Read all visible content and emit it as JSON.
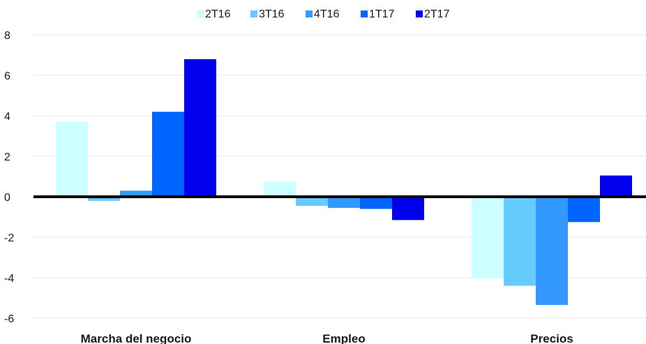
{
  "chart_data": {
    "type": "bar",
    "categories": [
      "Marcha del negocio",
      "Empleo",
      "Precios"
    ],
    "series": [
      {
        "name": "2T16",
        "color": "#ccffff",
        "values": [
          3.7,
          0.75,
          -4.05
        ]
      },
      {
        "name": "3T16",
        "color": "#66ccff",
        "values": [
          -0.2,
          -0.45,
          -4.4
        ]
      },
      {
        "name": "4T16",
        "color": "#3399ff",
        "values": [
          0.3,
          -0.55,
          -5.35
        ]
      },
      {
        "name": "1T17",
        "color": "#0066ff",
        "values": [
          4.2,
          -0.6,
          -1.25
        ]
      },
      {
        "name": "2T17",
        "color": "#0000ee",
        "values": [
          6.8,
          -1.15,
          1.05
        ]
      }
    ],
    "ylim": [
      -6,
      8
    ],
    "yticks": [
      -6,
      -4,
      -2,
      0,
      2,
      4,
      6,
      8
    ],
    "title": "",
    "xlabel": "",
    "ylabel": "",
    "grid": true,
    "legend": "top-center"
  }
}
